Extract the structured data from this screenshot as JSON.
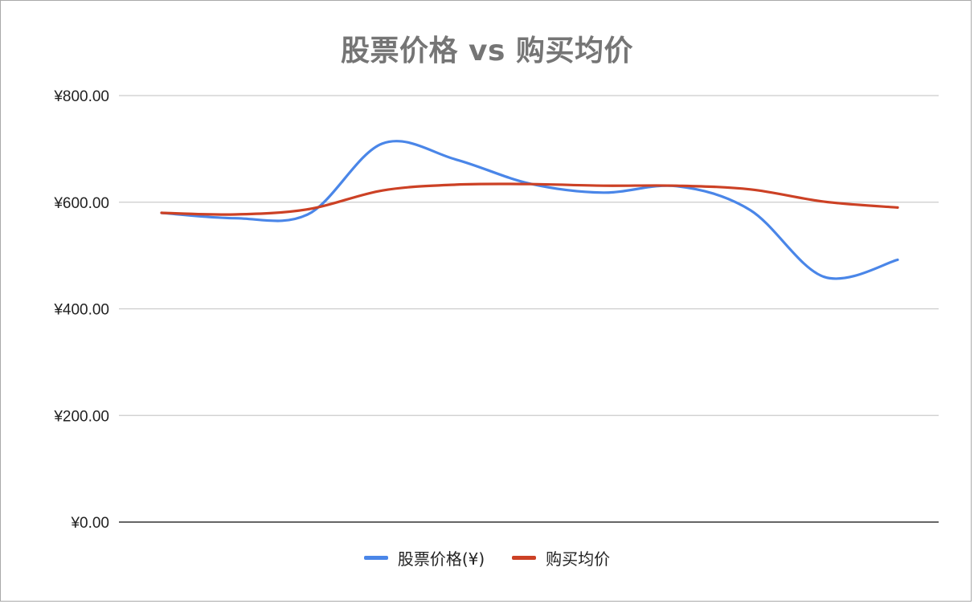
{
  "chart_data": {
    "type": "line",
    "title": "股票价格 vs 购买均价",
    "xlabel": "",
    "ylabel": "",
    "ylim": [
      0,
      800
    ],
    "yticks": [
      "¥0.00",
      "¥200.00",
      "¥400.00",
      "¥600.00",
      "¥800.00"
    ],
    "ytick_values": [
      0,
      200,
      400,
      600,
      800
    ],
    "grid": true,
    "legend_position": "bottom",
    "smooth": true,
    "x": [
      1,
      2,
      3,
      4,
      5,
      6,
      7,
      8,
      9,
      10,
      11
    ],
    "series": [
      {
        "name": "股票价格(¥)",
        "color": "#4a86e8",
        "values": [
          580,
          570,
          578,
          710,
          680,
          635,
          618,
          630,
          585,
          460,
          492
        ]
      },
      {
        "name": "购买均价",
        "color": "#cc4125",
        "values": [
          580,
          577,
          587,
          622,
          633,
          634,
          631,
          631,
          624,
          601,
          590
        ]
      }
    ]
  }
}
